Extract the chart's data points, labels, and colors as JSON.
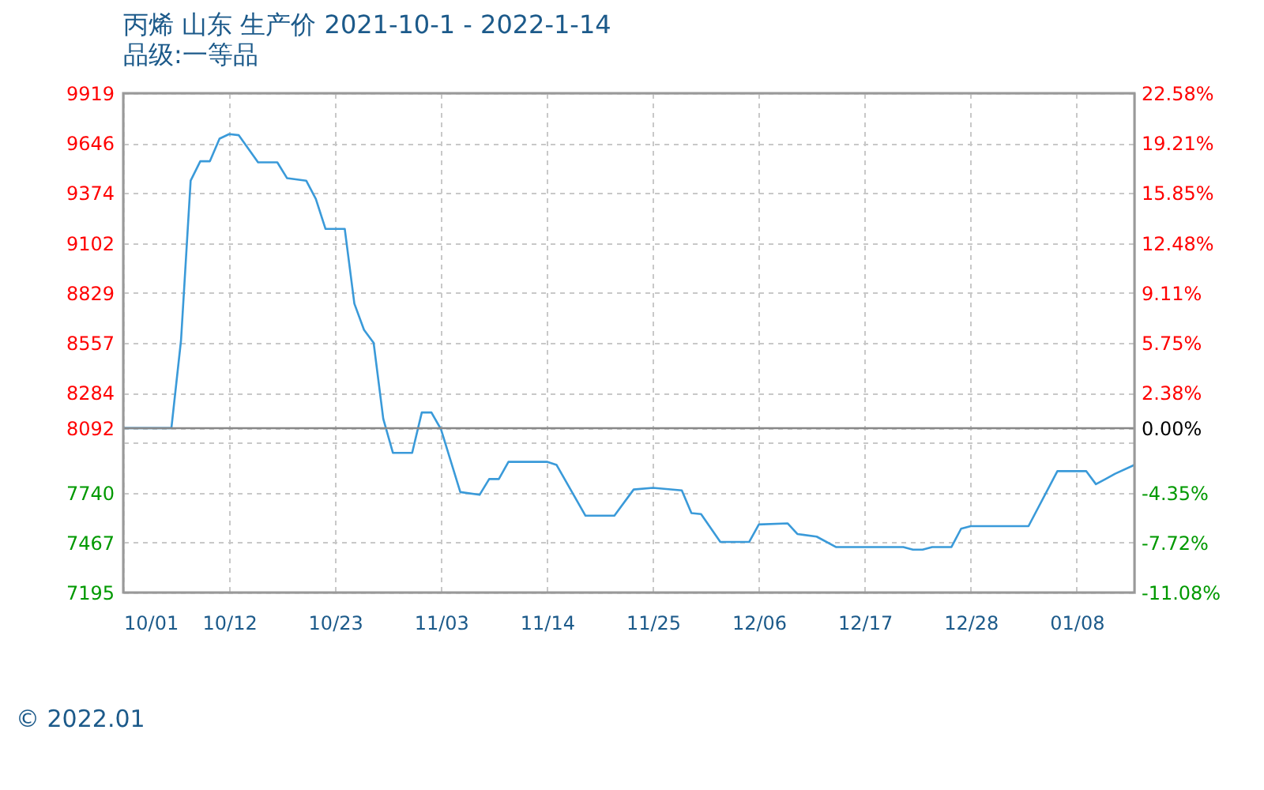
{
  "chart_data": {
    "type": "line",
    "title": "丙烯 山东 生产价 2021-10-1 - 2022-1-14",
    "subtitle": "品级:一等品",
    "x": [
      "2021-10-01",
      "2021-10-06",
      "2021-10-07",
      "2021-10-08",
      "2021-10-09",
      "2021-10-10",
      "2021-10-11",
      "2021-10-12",
      "2021-10-13",
      "2021-10-15",
      "2021-10-17",
      "2021-10-18",
      "2021-10-20",
      "2021-10-21",
      "2021-10-22",
      "2021-10-24",
      "2021-10-25",
      "2021-10-26",
      "2021-10-27",
      "2021-10-28",
      "2021-10-29",
      "2021-10-31",
      "2021-11-01",
      "2021-11-02",
      "2021-11-03",
      "2021-11-05",
      "2021-11-07",
      "2021-11-08",
      "2021-11-09",
      "2021-11-10",
      "2021-11-14",
      "2021-11-15",
      "2021-11-18",
      "2021-11-21",
      "2021-11-23",
      "2021-11-25",
      "2021-11-28",
      "2021-11-29",
      "2021-11-30",
      "2021-12-02",
      "2021-12-05",
      "2021-12-06",
      "2021-12-09",
      "2021-12-10",
      "2021-12-12",
      "2021-12-14",
      "2021-12-21",
      "2021-12-22",
      "2021-12-23",
      "2021-12-24",
      "2021-12-26",
      "2021-12-27",
      "2021-12-28",
      "2022-01-03",
      "2022-01-06",
      "2022-01-09",
      "2022-01-10",
      "2022-01-11",
      "2022-01-12",
      "2022-01-14"
    ],
    "series": [
      {
        "color": "#3a9ad9",
        "values": [
          8092,
          8092,
          8571,
          9442,
          9548,
          9548,
          9671,
          9696,
          9690,
          9542,
          9542,
          9456,
          9442,
          9342,
          9179,
          9179,
          8771,
          8628,
          8557,
          8143,
          7957,
          7957,
          8177,
          8177,
          8085,
          7743,
          7728,
          7814,
          7814,
          7908,
          7908,
          7891,
          7614,
          7614,
          7757,
          7766,
          7752,
          7628,
          7623,
          7471,
          7471,
          7566,
          7572,
          7514,
          7500,
          7443,
          7443,
          7429,
          7429,
          7443,
          7443,
          7543,
          7557,
          7557,
          7857,
          7857,
          7786,
          7814,
          7843,
          7891
        ]
      }
    ],
    "xlim": [
      "2021-10-01",
      "2022-01-14"
    ],
    "xticks": [
      {
        "value": "2021-10-01",
        "label": "10/01"
      },
      {
        "value": "2021-10-12",
        "label": "10/12"
      },
      {
        "value": "2021-10-23",
        "label": "10/23"
      },
      {
        "value": "2021-11-03",
        "label": "11/03"
      },
      {
        "value": "2021-11-14",
        "label": "11/14"
      },
      {
        "value": "2021-11-25",
        "label": "11/25"
      },
      {
        "value": "2021-12-06",
        "label": "12/06"
      },
      {
        "value": "2021-12-17",
        "label": "12/17"
      },
      {
        "value": "2021-12-28",
        "label": "12/28"
      },
      {
        "value": "2022-01-08",
        "label": "01/08"
      }
    ],
    "ylim": [
      7195,
      9919
    ],
    "yticks": [
      7195,
      7467,
      7740,
      {
        "value": 8012,
        "label": null
      },
      8092,
      8284,
      8557,
      8829,
      9102,
      9374,
      9646,
      9919
    ],
    "y2lim": [
      -11.08,
      22.58
    ],
    "y2ticks": [
      {
        "value": -11.08,
        "label": "-11.08%"
      },
      {
        "value": -7.72,
        "label": "-7.72%"
      },
      {
        "value": -4.35,
        "label": "-4.35%"
      },
      {
        "value": 0,
        "label": "0.00%"
      },
      {
        "value": 2.38,
        "label": "2.38%"
      },
      {
        "value": 5.75,
        "label": "5.75%"
      },
      {
        "value": 9.11,
        "label": "9.11%"
      },
      {
        "value": 12.48,
        "label": "12.48%"
      },
      {
        "value": 15.85,
        "label": "15.85%"
      },
      {
        "value": 19.21,
        "label": "19.21%"
      },
      {
        "value": 22.58,
        "label": "22.58%"
      }
    ],
    "ref_lines": [
      {
        "axis": "y2",
        "value": 0,
        "color": "#888888"
      }
    ],
    "grid": true,
    "annotations": [
      "© 2022.01"
    ]
  }
}
